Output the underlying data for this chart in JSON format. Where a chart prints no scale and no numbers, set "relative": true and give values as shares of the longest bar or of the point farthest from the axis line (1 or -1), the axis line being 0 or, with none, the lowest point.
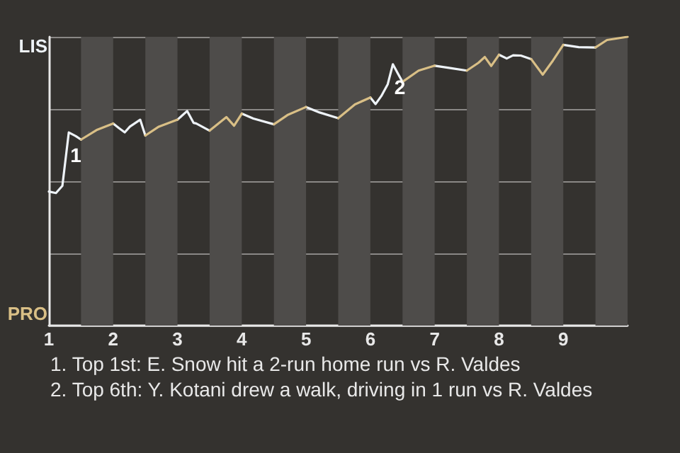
{
  "chart_data": {
    "type": "line",
    "relative": true,
    "x": [
      1,
      1.11,
      1.21,
      1.31,
      1.42,
      1.5,
      1.74,
      2,
      2.09,
      2.18,
      2.26,
      2.42,
      2.5,
      2.71,
      3,
      3.15,
      3.25,
      3.29,
      3.5,
      3.76,
      3.88,
      4,
      4.18,
      4.5,
      4.71,
      5,
      5.21,
      5.5,
      5.76,
      6,
      6.08,
      6.17,
      6.27,
      6.35,
      6.43,
      6.5,
      6.75,
      7,
      7.24,
      7.5,
      7.68,
      7.78,
      7.88,
      8,
      8.12,
      8.22,
      8.34,
      8.5,
      8.68,
      8.84,
      9,
      9.24,
      9.5,
      9.68,
      10
    ],
    "series": [
      {
        "color": "#eef3f8",
        "values": [
          0.464,
          0.459,
          0.484,
          0.669,
          0.656,
          0.644,
          null,
          0.7,
          0.684,
          0.669,
          0.689,
          0.713,
          0.658,
          null,
          0.713,
          0.743,
          0.702,
          0.7,
          0.675,
          null,
          null,
          0.734,
          0.717,
          0.697,
          null,
          0.757,
          0.738,
          0.718,
          null,
          0.79,
          0.767,
          0.795,
          0.836,
          0.905,
          0.872,
          0.844,
          null,
          0.9,
          0.892,
          0.883,
          null,
          null,
          null,
          0.938,
          0.925,
          0.936,
          0.935,
          0.923,
          null,
          null,
          0.972,
          0.964,
          0.963,
          null,
          null
        ]
      },
      {
        "color": "#d9bf86",
        "values": [
          null,
          null,
          null,
          null,
          null,
          0.644,
          0.677,
          0.7,
          null,
          null,
          null,
          null,
          0.658,
          0.689,
          0.713,
          null,
          null,
          null,
          0.675,
          0.722,
          0.692,
          0.734,
          null,
          0.697,
          0.729,
          0.757,
          null,
          0.718,
          0.766,
          0.79,
          null,
          null,
          null,
          null,
          null,
          0.844,
          0.883,
          0.9,
          null,
          0.883,
          0.91,
          0.93,
          0.899,
          0.938,
          null,
          null,
          null,
          0.923,
          0.869,
          0.918,
          0.972,
          null,
          0.963,
          0.989,
          1
        ]
      }
    ],
    "xlim": [
      1,
      10
    ],
    "xticks": [
      1,
      2,
      3,
      4,
      5,
      6,
      7,
      8,
      9
    ],
    "grid": "y",
    "legend": false,
    "marker": "none",
    "line_style": "solid",
    "bands": [
      {
        "axis": "x",
        "from": 1.5,
        "to": 2,
        "color": "#4e4c4a"
      },
      {
        "axis": "x",
        "from": 2.5,
        "to": 3,
        "color": "#4e4c4a"
      },
      {
        "axis": "x",
        "from": 3.5,
        "to": 4,
        "color": "#4e4c4a"
      },
      {
        "axis": "x",
        "from": 4.5,
        "to": 5,
        "color": "#4e4c4a"
      },
      {
        "axis": "x",
        "from": 5.5,
        "to": 6,
        "color": "#4e4c4a"
      },
      {
        "axis": "x",
        "from": 6.5,
        "to": 7,
        "color": "#4e4c4a"
      },
      {
        "axis": "x",
        "from": 7.5,
        "to": 8,
        "color": "#4e4c4a"
      },
      {
        "axis": "x",
        "from": 8.5,
        "to": 9,
        "color": "#4e4c4a"
      },
      {
        "axis": "x",
        "from": 9.5,
        "to": 10,
        "color": "#4e4c4a"
      }
    ],
    "annotations": [
      "LIS",
      "PRO",
      {
        "text": "1",
        "x": 1.31,
        "y": 0.669
      },
      {
        "text": "2",
        "x": 6.35,
        "y": 0.905
      },
      "1. Top 1st: E. Snow hit a 2-run home run vs R. Valdes",
      "2. Top 6th: Y. Kotani drew a walk, driving in 1 run vs R. Valdes"
    ]
  }
}
